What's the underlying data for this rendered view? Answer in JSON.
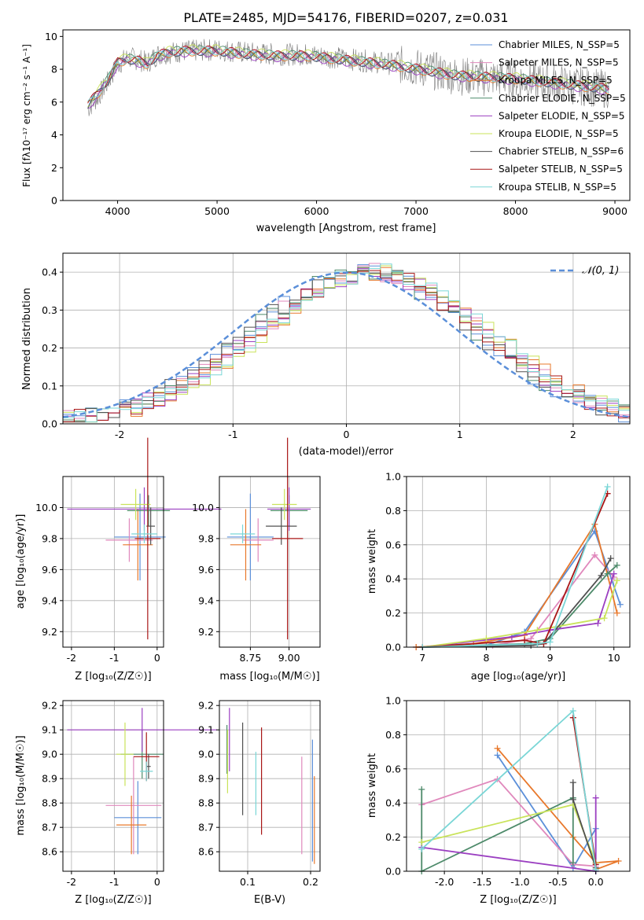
{
  "figure_title": "PLATE=2485, MJD=54176, FIBERID=0207, z=0.031",
  "legend": [
    {
      "name": "Chabrier MILES, N_SSP=5",
      "color": "#5B8FD9"
    },
    {
      "name": "Salpeter MILES, N_SSP=5",
      "color": "#E088BC"
    },
    {
      "name": "Kroupa MILES, N_SSP=5",
      "color": "#E8782B"
    },
    {
      "name": "Chabrier ELODIE, N_SSP=5",
      "color": "#4D8A6A"
    },
    {
      "name": "Salpeter ELODIE, N_SSP=5",
      "color": "#9B3FC1"
    },
    {
      "name": "Kroupa ELODIE, N_SSP=5",
      "color": "#C9E35A"
    },
    {
      "name": "Chabrier STELIB, N_SSP=6",
      "color": "#505050"
    },
    {
      "name": "Salpeter STELIB, N_SSP=5",
      "color": "#A81616"
    },
    {
      "name": "Kroupa STELIB, N_SSP=5",
      "color": "#7AD6D6"
    }
  ],
  "chart_data": [
    {
      "id": "spectrum",
      "type": "line",
      "xlabel": "wavelength [Angstrom, rest frame]",
      "ylabel": "Flux [fλ10⁻¹⁷ erg cm⁻² s⁻¹ A⁻¹]",
      "xlim": [
        3450,
        9150
      ],
      "ylim": [
        0,
        10.4
      ],
      "xticks": [
        4000,
        5000,
        6000,
        7000,
        8000,
        9000
      ],
      "yticks": [
        0,
        2,
        4,
        6,
        8,
        10
      ],
      "grid": false,
      "legend_position": "top-right",
      "data_wavelength": [
        3700,
        3800,
        3900,
        4000,
        4100,
        4200,
        4300,
        4400,
        4500,
        4700,
        5000,
        5300,
        5600,
        5900,
        6200,
        6500,
        6800,
        7100,
        7400,
        7700,
        8000,
        8300,
        8600,
        8900
      ],
      "data_flux": [
        5.6,
        6.3,
        7.2,
        8.3,
        8.7,
        8.6,
        8.4,
        8.9,
        9.0,
        9.1,
        9.2,
        9.0,
        8.9,
        8.9,
        8.7,
        8.5,
        8.3,
        8.0,
        7.6,
        7.5,
        7.4,
        7.2,
        7.0,
        6.8
      ],
      "model_wavelength": [
        3700,
        3800,
        3900,
        4000,
        4100,
        4200,
        4300,
        4400,
        4500,
        4700,
        5000,
        5300,
        5600,
        5900,
        6200,
        6500,
        6800,
        7100,
        7400,
        7700,
        8000,
        8300,
        8600,
        8900
      ],
      "model_flux": [
        5.8,
        6.5,
        7.3,
        8.4,
        8.6,
        8.5,
        8.3,
        8.8,
        9.0,
        9.1,
        9.1,
        8.9,
        8.8,
        8.8,
        8.6,
        8.4,
        8.2,
        7.9,
        7.6,
        7.5,
        7.4,
        7.2,
        7.0,
        6.8
      ]
    },
    {
      "id": "residuals",
      "type": "line",
      "xlabel": "(data-model)/error",
      "ylabel": "Normed distribution",
      "xlim": [
        -2.5,
        2.5
      ],
      "ylim": [
        0,
        0.45
      ],
      "xticks": [
        -2,
        -1,
        0,
        1,
        2
      ],
      "yticks": [
        0.0,
        0.1,
        0.2,
        0.3,
        0.4
      ],
      "grid": true,
      "legend": "𝒩(0, 1)",
      "legend_position": "top-right"
    },
    {
      "id": "age_vs_Z",
      "type": "scatter",
      "xlabel": "Z [log₁₀(Z/Z☉)]",
      "ylabel": "age  [log₁₀(age/yr)]",
      "xlim": [
        -2.2,
        0.15
      ],
      "ylim": [
        9.1,
        10.2
      ],
      "xticks": [
        -2,
        -1,
        0
      ],
      "yticks": [
        9.2,
        9.4,
        9.6,
        9.8,
        10.0
      ],
      "grid": true,
      "points": [
        {
          "series": 0,
          "x": -0.4,
          "y": 9.81,
          "xerr": 0.6,
          "yerr": 0.28
        },
        {
          "series": 1,
          "x": -0.65,
          "y": 9.79,
          "xerr": 0.55,
          "yerr": 0.14
        },
        {
          "series": 2,
          "x": -0.45,
          "y": 9.76,
          "xerr": 0.35,
          "yerr": 0.23
        },
        {
          "series": 3,
          "x": -0.2,
          "y": 9.98,
          "xerr": 0.5,
          "yerr": 0.1
        },
        {
          "series": 4,
          "x": -0.3,
          "y": 9.99,
          "xerr": 1.8,
          "yerr": 0.14
        },
        {
          "series": 5,
          "x": -0.5,
          "y": 10.02,
          "xerr": 0.35,
          "yerr": 0.1
        },
        {
          "series": 6,
          "x": -0.15,
          "y": 9.88,
          "xerr": 0.1,
          "yerr": 0.12
        },
        {
          "series": 7,
          "x": -0.22,
          "y": 9.8,
          "xerr": 0.3,
          "yerr": 0.65
        },
        {
          "series": 8,
          "x": -0.3,
          "y": 9.83,
          "xerr": 0.3,
          "yerr": 0.06
        }
      ]
    },
    {
      "id": "age_vs_mass",
      "type": "scatter",
      "xlabel": "mass [log₁₀(M/M☉)]",
      "ylabel": "",
      "xlim": [
        8.55,
        9.2
      ],
      "ylim": [
        9.1,
        10.2
      ],
      "xticks": [
        8.75,
        9.0
      ],
      "yticks": [
        9.2,
        9.4,
        9.6,
        9.8,
        10.0
      ],
      "grid": true,
      "points": [
        {
          "series": 0,
          "x": 8.75,
          "y": 9.81,
          "xerr": 0.15,
          "yerr": 0.28
        },
        {
          "series": 1,
          "x": 8.8,
          "y": 9.79,
          "xerr": 0.1,
          "yerr": 0.14
        },
        {
          "series": 2,
          "x": 8.72,
          "y": 9.76,
          "xerr": 0.1,
          "yerr": 0.23
        },
        {
          "series": 3,
          "x": 9.0,
          "y": 9.98,
          "xerr": 0.12,
          "yerr": 0.1
        },
        {
          "series": 4,
          "x": 9.0,
          "y": 9.99,
          "xerr": 0.14,
          "yerr": 0.14
        },
        {
          "series": 5,
          "x": 8.97,
          "y": 10.02,
          "xerr": 0.08,
          "yerr": 0.1
        },
        {
          "series": 6,
          "x": 8.95,
          "y": 9.88,
          "xerr": 0.1,
          "yerr": 0.12
        },
        {
          "series": 7,
          "x": 8.99,
          "y": 9.8,
          "xerr": 0.1,
          "yerr": 0.65
        },
        {
          "series": 8,
          "x": 8.7,
          "y": 9.83,
          "xerr": 0.08,
          "yerr": 0.06
        }
      ]
    },
    {
      "id": "weight_vs_age",
      "type": "line",
      "xlabel": "age  [log₁₀(age/yr)]",
      "ylabel": "mass weight",
      "xlim": [
        6.75,
        10.25
      ],
      "ylim": [
        0,
        1.0
      ],
      "xticks": [
        7,
        8,
        9,
        10
      ],
      "yticks": [
        0.0,
        0.2,
        0.4,
        0.6,
        0.8,
        1.0
      ],
      "grid": true,
      "series": [
        {
          "series": 0,
          "points": [
            [
              6.9,
              0.0
            ],
            [
              8.0,
              0.01
            ],
            [
              8.6,
              0.09
            ],
            [
              9.7,
              0.68
            ],
            [
              10.1,
              0.25
            ]
          ]
        },
        {
          "series": 1,
          "points": [
            [
              6.9,
              0.0
            ],
            [
              8.1,
              0.01
            ],
            [
              8.7,
              0.05
            ],
            [
              9.7,
              0.54
            ],
            [
              10.0,
              0.41
            ]
          ]
        },
        {
          "series": 2,
          "points": [
            [
              6.9,
              0.0
            ],
            [
              7.8,
              0.02
            ],
            [
              8.6,
              0.07
            ],
            [
              9.7,
              0.72
            ],
            [
              10.05,
              0.2
            ]
          ]
        },
        {
          "series": 3,
          "points": [
            [
              7.0,
              0.0
            ],
            [
              8.6,
              0.02
            ],
            [
              9.0,
              0.05
            ],
            [
              9.9,
              0.43
            ],
            [
              10.05,
              0.48
            ]
          ]
        },
        {
          "series": 4,
          "points": [
            [
              7.0,
              0.0
            ],
            [
              8.4,
              0.06
            ],
            [
              9.0,
              0.1
            ],
            [
              9.75,
              0.14
            ],
            [
              10.0,
              0.43
            ]
          ]
        },
        {
          "series": 5,
          "points": [
            [
              7.0,
              0.0
            ],
            [
              8.0,
              0.05
            ],
            [
              8.8,
              0.1
            ],
            [
              9.85,
              0.17
            ],
            [
              10.05,
              0.39
            ]
          ]
        },
        {
          "series": 6,
          "points": [
            [
              7.0,
              0.0
            ],
            [
              8.7,
              0.01
            ],
            [
              8.9,
              0.02
            ],
            [
              9.8,
              0.42
            ],
            [
              9.95,
              0.52
            ]
          ]
        },
        {
          "series": 7,
          "points": [
            [
              7.0,
              0.0
            ],
            [
              8.6,
              0.04
            ],
            [
              8.9,
              0.02
            ],
            [
              9.9,
              0.9
            ]
          ]
        },
        {
          "series": 8,
          "points": [
            [
              7.0,
              0.0
            ],
            [
              8.8,
              0.02
            ],
            [
              9.0,
              0.03
            ],
            [
              9.9,
              0.94
            ]
          ]
        }
      ]
    },
    {
      "id": "mass_vs_Z",
      "type": "scatter",
      "xlabel": "Z [log₁₀(Z/Z☉)]",
      "ylabel": "mass [log₁₀(M/M☉)]",
      "xlim": [
        -2.2,
        0.15
      ],
      "ylim": [
        8.52,
        9.22
      ],
      "xticks": [
        -2,
        -1,
        0
      ],
      "yticks": [
        8.6,
        8.7,
        8.8,
        8.9,
        9.0,
        9.1,
        9.2
      ],
      "grid": true,
      "points": [
        {
          "series": 0,
          "x": -0.45,
          "y": 8.74,
          "xerr": 0.55,
          "yerr": 0.15
        },
        {
          "series": 1,
          "x": -0.55,
          "y": 8.79,
          "xerr": 0.65,
          "yerr": 0.2
        },
        {
          "series": 2,
          "x": -0.6,
          "y": 8.71,
          "xerr": 0.35,
          "yerr": 0.12
        },
        {
          "series": 3,
          "x": -0.35,
          "y": 9.0,
          "xerr": 0.5,
          "yerr": 0.1
        },
        {
          "series": 4,
          "x": -0.35,
          "y": 9.1,
          "xerr": 1.75,
          "yerr": 0.09
        },
        {
          "series": 5,
          "x": -0.75,
          "y": 9.0,
          "xerr": 0.2,
          "yerr": 0.13
        },
        {
          "series": 6,
          "x": -0.2,
          "y": 8.95,
          "xerr": 0.05,
          "yerr": 0.05
        },
        {
          "series": 7,
          "x": -0.25,
          "y": 8.99,
          "xerr": 0.3,
          "yerr": 0.1
        },
        {
          "series": 8,
          "x": -0.25,
          "y": 8.93,
          "xerr": 0.15,
          "yerr": 0.04
        }
      ]
    },
    {
      "id": "mass_vs_ebv",
      "type": "scatter",
      "xlabel": "E(B-V)",
      "ylabel": "",
      "xlim": [
        0.055,
        0.215
      ],
      "ylim": [
        8.52,
        9.22
      ],
      "xticks": [
        0.1,
        0.2
      ],
      "yticks": [
        8.6,
        8.7,
        8.8,
        8.9,
        9.0,
        9.1,
        9.2
      ],
      "grid": true,
      "points": [
        {
          "series": 0,
          "x": 0.203,
          "y": 8.81,
          "xerr": 0.0,
          "yerr": 0.25
        },
        {
          "series": 1,
          "x": 0.186,
          "y": 8.79,
          "xerr": 0.0,
          "yerr": 0.2
        },
        {
          "series": 2,
          "x": 0.206,
          "y": 8.73,
          "xerr": 0.0,
          "yerr": 0.18
        },
        {
          "series": 3,
          "x": 0.067,
          "y": 9.02,
          "xerr": 0.0,
          "yerr": 0.1
        },
        {
          "series": 4,
          "x": 0.071,
          "y": 9.06,
          "xerr": 0.0,
          "yerr": 0.13
        },
        {
          "series": 5,
          "x": 0.068,
          "y": 8.97,
          "xerr": 0.0,
          "yerr": 0.13
        },
        {
          "series": 6,
          "x": 0.092,
          "y": 8.94,
          "xerr": 0.0,
          "yerr": 0.19
        },
        {
          "series": 7,
          "x": 0.122,
          "y": 8.89,
          "xerr": 0.0,
          "yerr": 0.22
        },
        {
          "series": 8,
          "x": 0.113,
          "y": 8.88,
          "xerr": 0.0,
          "yerr": 0.13
        }
      ]
    },
    {
      "id": "weight_vs_Z",
      "type": "line",
      "xlabel": "Z [log₁₀(Z/Z☉)]",
      "ylabel": "mass weight",
      "xlim": [
        -2.5,
        0.45
      ],
      "ylim": [
        0,
        1.0
      ],
      "xticks": [
        -2.0,
        -1.5,
        -1.0,
        -0.5,
        0.0
      ],
      "yticks": [
        0.0,
        0.2,
        0.4,
        0.6,
        0.8,
        1.0
      ],
      "grid": true,
      "series": [
        {
          "series": 0,
          "points": [
            [
              -1.3,
              0.68
            ],
            [
              -0.3,
              0.02
            ],
            [
              0.0,
              0.25
            ],
            [
              0.0,
              0.0
            ]
          ]
        },
        {
          "series": 1,
          "points": [
            [
              -2.3,
              0.39
            ],
            [
              -1.3,
              0.54
            ],
            [
              -0.3,
              0.04
            ],
            [
              0.0,
              0.03
            ]
          ]
        },
        {
          "series": 2,
          "points": [
            [
              -1.3,
              0.72
            ],
            [
              -0.3,
              0.2
            ],
            [
              0.0,
              0.05
            ],
            [
              0.3,
              0.06
            ],
            [
              0.0,
              0.01
            ]
          ]
        },
        {
          "series": 3,
          "points": [
            [
              -2.3,
              0.48
            ],
            [
              -2.3,
              0.0
            ],
            [
              -0.3,
              0.43
            ],
            [
              -0.3,
              0.05
            ]
          ]
        },
        {
          "series": 4,
          "points": [
            [
              -2.3,
              0.14
            ],
            [
              0.0,
              0.0
            ],
            [
              0.0,
              0.43
            ]
          ]
        },
        {
          "series": 5,
          "points": [
            [
              -2.3,
              0.17
            ],
            [
              -0.3,
              0.39
            ],
            [
              0.0,
              0.05
            ]
          ]
        },
        {
          "series": 6,
          "points": [
            [
              -0.3,
              0.52
            ],
            [
              -0.3,
              0.42
            ],
            [
              0.0,
              0.02
            ]
          ]
        },
        {
          "series": 7,
          "points": [
            [
              -0.3,
              0.9
            ],
            [
              0.0,
              0.04
            ]
          ]
        },
        {
          "series": 8,
          "points": [
            [
              -2.3,
              0.13
            ],
            [
              -0.3,
              0.94
            ],
            [
              0.0,
              0.01
            ]
          ]
        }
      ]
    }
  ]
}
